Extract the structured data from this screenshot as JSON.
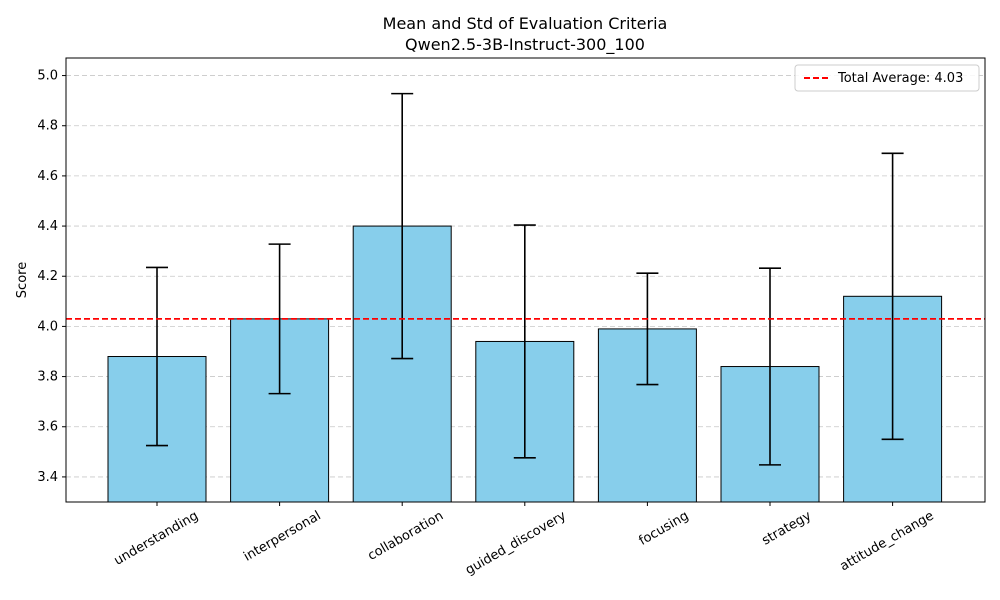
{
  "chart_data": {
    "type": "bar",
    "title": "Mean and Std of Evaluation Criteria",
    "subtitle": "Qwen2.5-3B-Instruct-300_100",
    "xlabel": "",
    "ylabel": "Score",
    "ylim": [
      3.3,
      5.07
    ],
    "yticks": [
      "3.4",
      "3.6",
      "3.8",
      "4.0",
      "4.2",
      "4.4",
      "4.6",
      "4.8",
      "5.0"
    ],
    "categories": [
      "understanding",
      "interpersonal",
      "collaboration",
      "guided_discovery",
      "focusing",
      "strategy",
      "attitude_change"
    ],
    "values": [
      3.88,
      4.03,
      4.4,
      3.94,
      3.99,
      3.84,
      4.12
    ],
    "std": [
      0.355,
      0.298,
      0.528,
      0.464,
      0.222,
      0.392,
      0.57
    ],
    "grid": "y-dashed",
    "reference_line": {
      "value": 4.03,
      "label": "Total Average: 4.03",
      "color": "#ff0000",
      "style": "dashed"
    },
    "legend_position": "top-right",
    "colors": {
      "bar_fill": "#87ceeb",
      "bar_edge": "#000000",
      "error_bar": "#000000"
    }
  }
}
